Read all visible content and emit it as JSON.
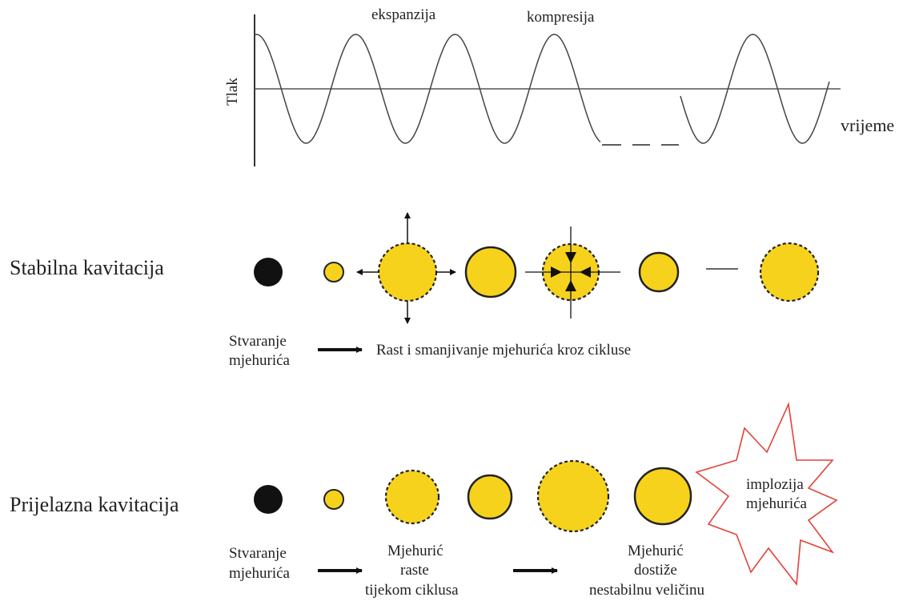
{
  "graph": {
    "y_label": "Tlak",
    "x_label": "vrijeme",
    "expansion_label": "ekspanzija",
    "compression_label": "kompresija"
  },
  "stable": {
    "title": "Stabilna kavitacija",
    "formation_line1": "Stvaranje",
    "formation_line2": "mjehurića",
    "cycle_label": "Rast i smanjivanje mjehurića kroz cikluse"
  },
  "transient": {
    "title": "Prijelazna kavitacija",
    "formation_line1": "Stvaranje",
    "formation_line2": "mjehurića",
    "growth_line1": "Mjehurić",
    "growth_line2": "raste",
    "growth_line3": "tijekom ciklusa",
    "unstable_line1": "Mjehurić",
    "unstable_line2": "dostiže",
    "unstable_line3": "nestabilnu veličinu",
    "implosion_line1": "implozija",
    "implosion_line2": "mjehurića"
  },
  "colors": {
    "bubble_fill": "#f7d21d",
    "nucleus": "#111111",
    "burst_stroke": "#e0443a"
  }
}
